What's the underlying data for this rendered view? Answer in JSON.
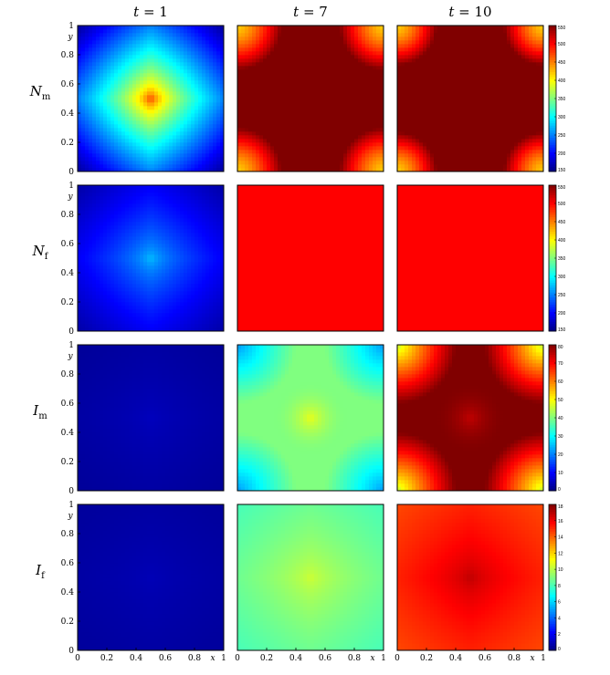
{
  "chart_data": {
    "type": "heatmap",
    "colormap": "jet",
    "columns": [
      {
        "id": "t1",
        "label": "t = 1",
        "t_label": "t",
        "t_value": "1"
      },
      {
        "id": "t7",
        "label": "t = 7",
        "t_label": "t",
        "t_value": "7"
      },
      {
        "id": "t10",
        "label": "t = 10",
        "t_label": "t",
        "t_value": "10"
      }
    ],
    "rows": [
      {
        "id": "Nm",
        "symbol": "N",
        "subscript": "m",
        "colorbar": {
          "min": 150,
          "max": 550,
          "ticks": [
            "550",
            "500",
            "450",
            "400",
            "350",
            "300",
            "250",
            "200",
            "150"
          ]
        },
        "panels": [
          {
            "field": "peak_center",
            "center_value": 490,
            "edge_value": 160,
            "falloff": "diamond"
          },
          {
            "field": "corner_arcs",
            "inner_value": 550,
            "corner_value": 420,
            "arc_radius": 0.3
          },
          {
            "field": "corner_arcs",
            "inner_value": 550,
            "corner_value": 420,
            "arc_radius": 0.27
          }
        ]
      },
      {
        "id": "Nf",
        "symbol": "N",
        "subscript": "f",
        "colorbar": {
          "min": 150,
          "max": 550,
          "ticks": [
            "550",
            "500",
            "450",
            "400",
            "350",
            "300",
            "250",
            "200",
            "150"
          ]
        },
        "panels": [
          {
            "field": "peak_center",
            "center_value": 280,
            "edge_value": 165,
            "falloff": "diamond"
          },
          {
            "field": "uniform",
            "value": 500
          },
          {
            "field": "uniform",
            "value": 500
          }
        ]
      },
      {
        "id": "Im",
        "symbol": "I",
        "subscript": "m",
        "colorbar": {
          "min": 0,
          "max": 80,
          "ticks": [
            "80",
            "70",
            "60",
            "50",
            "40",
            "30",
            "20",
            "10",
            "0"
          ]
        },
        "panels": [
          {
            "field": "peak_center",
            "center_value": 5,
            "edge_value": 2,
            "falloff": "diamond"
          },
          {
            "field": "saddle",
            "center_value": 48,
            "mid_value": 40,
            "corner_value": 22
          },
          {
            "field": "saddle",
            "center_value": 75,
            "mid_value": 80,
            "corner_value": 45
          }
        ]
      },
      {
        "id": "If",
        "symbol": "I",
        "subscript": "f",
        "colorbar": {
          "min": 0,
          "max": 18,
          "ticks": [
            "18",
            "16",
            "14",
            "12",
            "10",
            "8",
            "6",
            "4",
            "2",
            "0"
          ]
        },
        "panels": [
          {
            "field": "peak_center",
            "center_value": 1,
            "edge_value": 0.5,
            "falloff": "diamond"
          },
          {
            "field": "peak_center",
            "center_value": 10.5,
            "edge_value": 8,
            "falloff": "diamond"
          },
          {
            "field": "peak_center",
            "center_value": 17,
            "edge_value": 14.5,
            "falloff": "diamond"
          }
        ]
      }
    ],
    "x_axis": {
      "label": "x",
      "range": [
        0,
        1
      ],
      "ticks": [
        "0",
        "0.2",
        "0.4",
        "0.6",
        "0.8",
        "1"
      ]
    },
    "y_axis": {
      "label": "y",
      "range": [
        0,
        1
      ],
      "ticks": [
        "0",
        "0.2",
        "0.4",
        "0.6",
        "0.8",
        "1"
      ]
    }
  }
}
